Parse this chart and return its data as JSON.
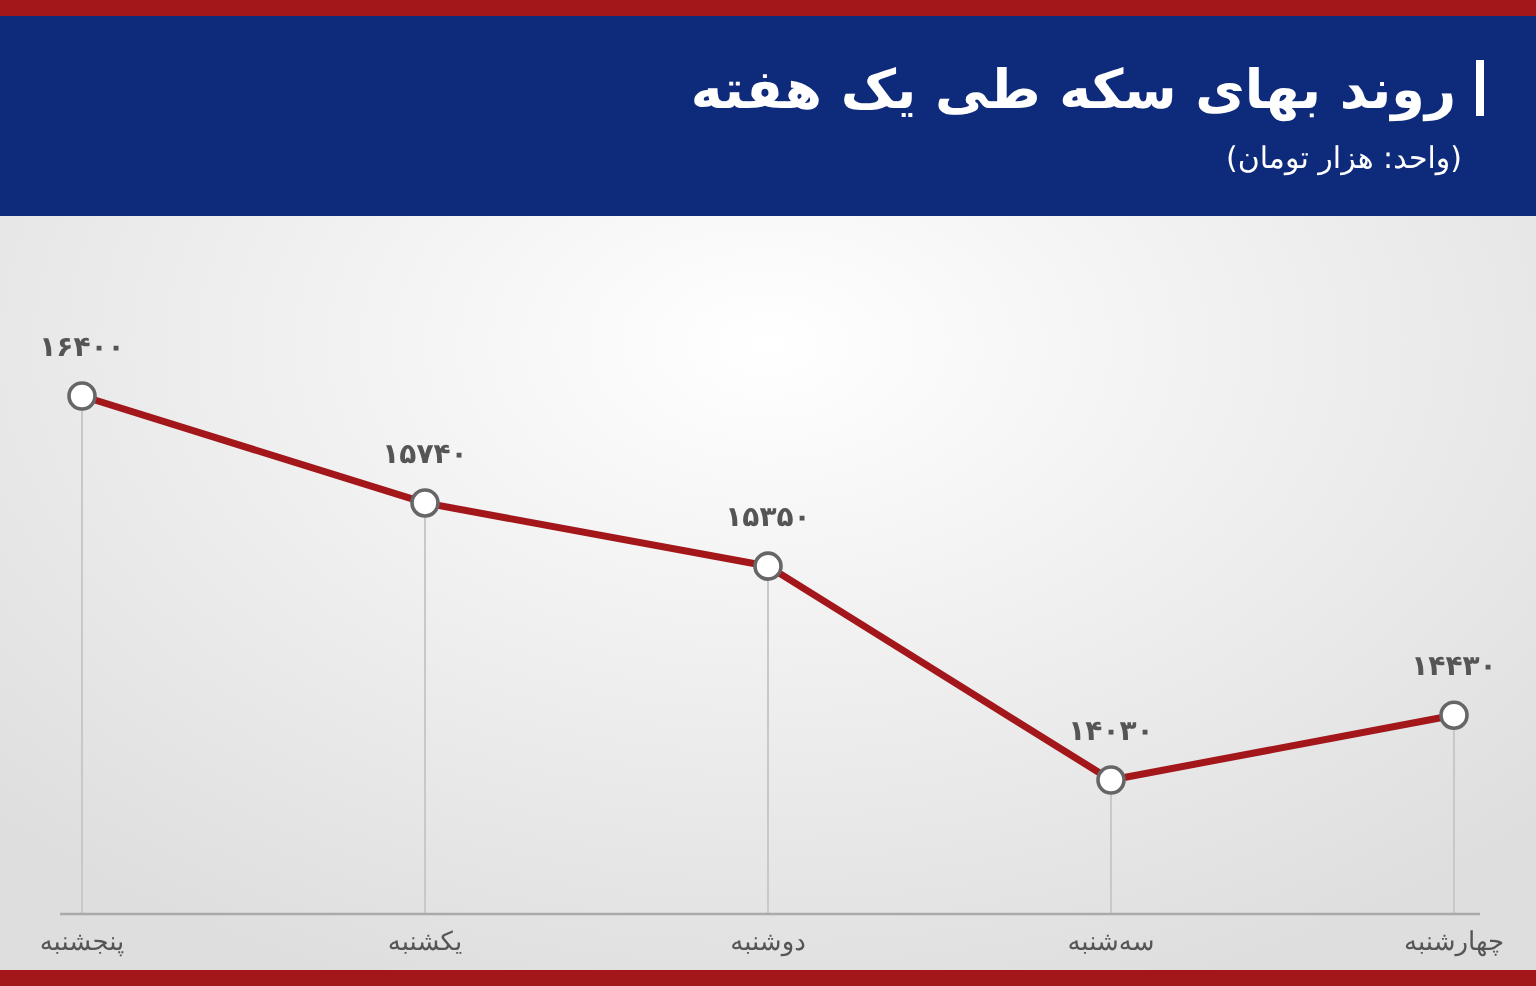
{
  "chart_data": {
    "type": "line",
    "title": "روند بهای سکه طی یک هفته",
    "subtitle": "(واحد: هزار تومان)",
    "categories": [
      "پنجشنبه",
      "یکشنبه",
      "دوشنبه",
      "سه‌شنبه",
      "چهارشنبه"
    ],
    "values": [
      16400,
      15740,
      15350,
      14030,
      14430
    ],
    "value_labels": [
      "۱۶۴۰۰",
      "۱۵۷۴۰",
      "۱۵۳۵۰",
      "۱۴۰۳۰",
      "۱۴۴۳۰"
    ],
    "color": "#a3161a",
    "marker": "circle",
    "grid": "x"
  }
}
